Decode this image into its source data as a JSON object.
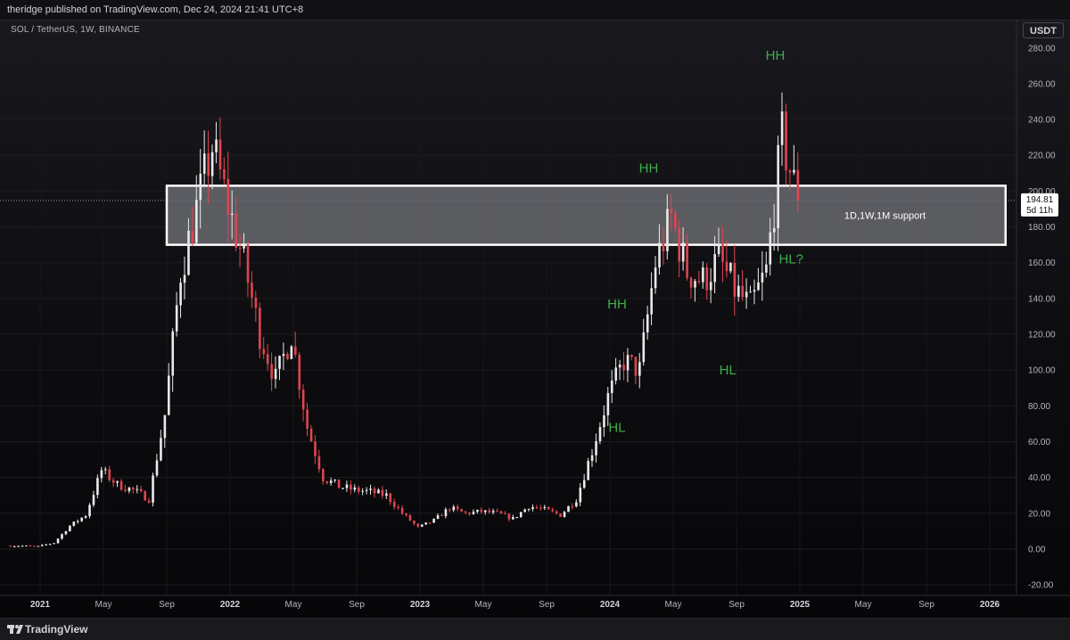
{
  "header": {
    "published": "theridge published on TradingView.com, Dec 24, 2024 21:41 UTC+8",
    "symbol": "SOL / TetherUS, 1W, BINANCE",
    "currency": "USDT"
  },
  "footer": {
    "brand": "TradingView"
  },
  "price_tag": {
    "price": "194.81",
    "countdown": "5d 11h"
  },
  "colors": {
    "up": "#e9e9ec",
    "down": "#e0454f",
    "annotation": "#3fae4a",
    "zone_fill": "#6b6c72",
    "zone_border": "#ffffff"
  },
  "chart_data": {
    "type": "candlestick",
    "title": "",
    "y_axis": {
      "min": -20,
      "max": 280,
      "ticks": [
        -20,
        0,
        20,
        40,
        60,
        80,
        100,
        120,
        140,
        160,
        180,
        200,
        220,
        240,
        260,
        280
      ]
    },
    "x_axis": {
      "ticks": [
        {
          "label": "2021",
          "date": "2021-01"
        },
        {
          "label": "May",
          "date": "2021-05"
        },
        {
          "label": "Sep",
          "date": "2021-09"
        },
        {
          "label": "2022",
          "date": "2022-01"
        },
        {
          "label": "May",
          "date": "2022-05"
        },
        {
          "label": "Sep",
          "date": "2022-09"
        },
        {
          "label": "2023",
          "date": "2023-01"
        },
        {
          "label": "May",
          "date": "2023-05"
        },
        {
          "label": "Sep",
          "date": "2023-09"
        },
        {
          "label": "2024",
          "date": "2024-01"
        },
        {
          "label": "May",
          "date": "2024-05"
        },
        {
          "label": "Sep",
          "date": "2024-09"
        },
        {
          "label": "2025",
          "date": "2025-01"
        },
        {
          "label": "May",
          "date": "2025-05"
        },
        {
          "label": "Sep",
          "date": "2025-09"
        },
        {
          "label": "2026",
          "date": "2026-01"
        }
      ]
    },
    "series": [
      {
        "name": "SOL / TetherUS",
        "points": [
          [
            "2020-11",
            1.8
          ],
          [
            "2020-12",
            1.5
          ],
          [
            "2021-01",
            3.5
          ],
          [
            "2021-02",
            13
          ],
          [
            "2021-03",
            19
          ],
          [
            "2021-04",
            44
          ],
          [
            "2021-05",
            36
          ],
          [
            "2021-06",
            33
          ],
          [
            "2021-07",
            28
          ],
          [
            "2021-08",
            75
          ],
          [
            "2021-09",
            155
          ],
          [
            "2021-10",
            190
          ],
          [
            "2021-11",
            225
          ],
          [
            "2021-12",
            192
          ],
          [
            "2022-01",
            160
          ],
          [
            "2022-02",
            120
          ],
          [
            "2022-03",
            95
          ],
          [
            "2022-04",
            120
          ],
          [
            "2022-05",
            68
          ],
          [
            "2022-06",
            40
          ],
          [
            "2022-07",
            35
          ],
          [
            "2022-08",
            33
          ],
          [
            "2022-09",
            32
          ],
          [
            "2022-10",
            30
          ],
          [
            "2022-11",
            20
          ],
          [
            "2022-12",
            12
          ],
          [
            "2023-01",
            16
          ],
          [
            "2023-02",
            23
          ],
          [
            "2023-03",
            20
          ],
          [
            "2023-04",
            21
          ],
          [
            "2023-05",
            20
          ],
          [
            "2023-06",
            17
          ],
          [
            "2023-07",
            24
          ],
          [
            "2023-08",
            22
          ],
          [
            "2023-09",
            19
          ],
          [
            "2023-10",
            28
          ],
          [
            "2023-11",
            55
          ],
          [
            "2023-12",
            85
          ],
          [
            "2024-01",
            105
          ],
          [
            "2024-02",
            100
          ],
          [
            "2024-03",
            160
          ],
          [
            "2024-04",
            185
          ],
          [
            "2024-05",
            155
          ],
          [
            "2024-06",
            150
          ],
          [
            "2024-07",
            162
          ],
          [
            "2024-08",
            145
          ],
          [
            "2024-09",
            135
          ],
          [
            "2024-10",
            155
          ],
          [
            "2024-11",
            230
          ],
          [
            "2024-12",
            194.81
          ]
        ]
      }
    ],
    "zones": [
      {
        "label": "1D,1W,1M support",
        "from": "2021-09",
        "to": "2026-02",
        "low": 170,
        "high": 203
      }
    ],
    "last_price": 194.81,
    "annotations": [
      {
        "text": "HH",
        "date": "2024-01",
        "price": 137
      },
      {
        "text": "HL",
        "date": "2024-01",
        "price": 68
      },
      {
        "text": "HH",
        "date": "2024-03",
        "price": 213
      },
      {
        "text": "HL",
        "date": "2024-08",
        "price": 100
      },
      {
        "text": "HH",
        "date": "2024-11",
        "price": 276
      },
      {
        "text": "HL?",
        "date": "2024-12",
        "price": 162
      }
    ]
  }
}
